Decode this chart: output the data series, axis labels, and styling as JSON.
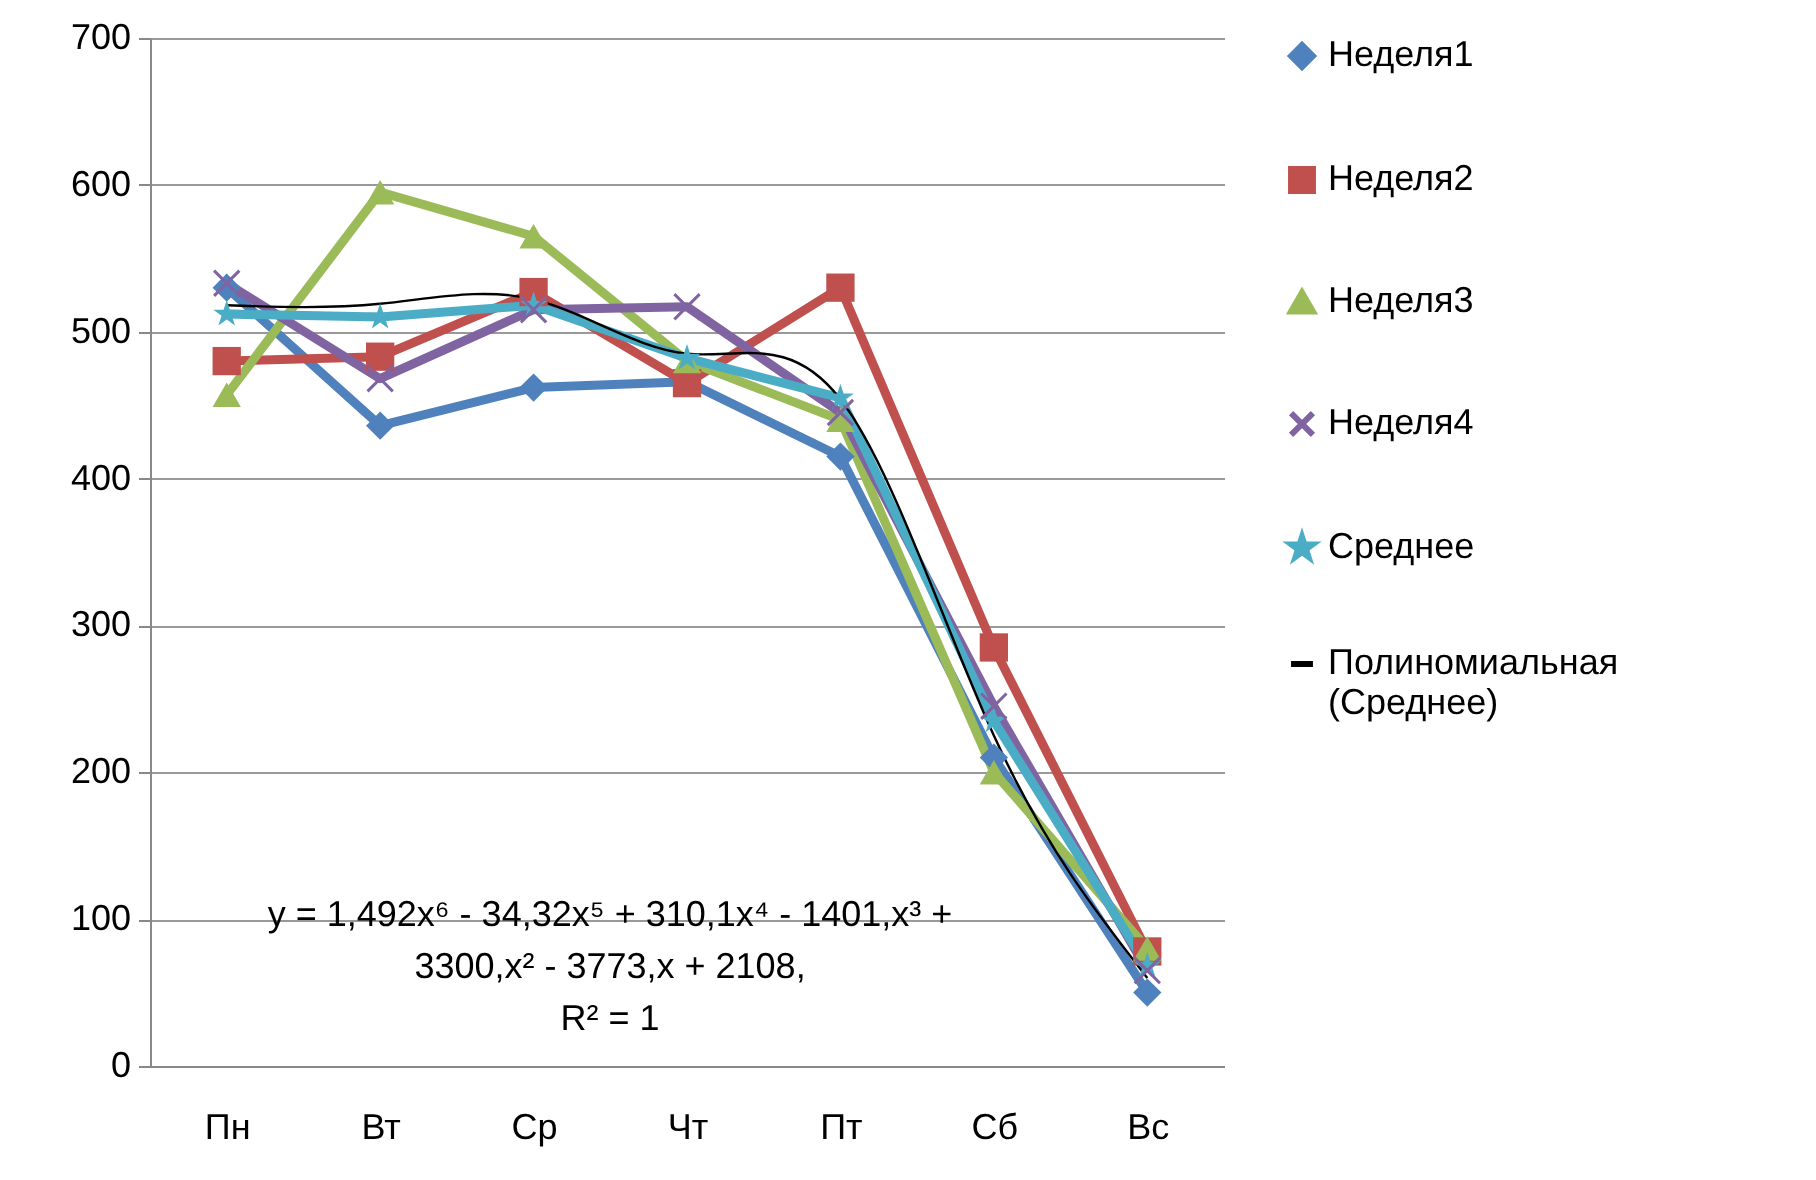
{
  "chart_data": {
    "type": "line",
    "categories": [
      "Пн",
      "Вт",
      "Ср",
      "Чт",
      "Пт",
      "Сб",
      "Вс"
    ],
    "ylim": [
      0,
      700
    ],
    "yticks": [
      0,
      100,
      200,
      300,
      400,
      500,
      600,
      700
    ],
    "grid": "y",
    "legend": "right",
    "series": [
      {
        "name": "Неделя1",
        "color": "#4f81bd",
        "marker": "diamond",
        "values": [
          530,
          436,
          462,
          466,
          415,
          210,
          50
        ]
      },
      {
        "name": "Неделя2",
        "color": "#c0504d",
        "marker": "square",
        "values": [
          480,
          483,
          527,
          465,
          530,
          285,
          78
        ]
      },
      {
        "name": "Неделя3",
        "color": "#9bbb59",
        "marker": "triangle",
        "values": [
          457,
          595,
          565,
          480,
          440,
          200,
          80
        ]
      },
      {
        "name": "Неделя4",
        "color": "#8064a2",
        "marker": "cross",
        "values": [
          533,
          468,
          515,
          517,
          445,
          245,
          65
        ]
      },
      {
        "name": "Среднее",
        "color": "#4bacc6",
        "marker": "star",
        "values": [
          512,
          510,
          518,
          482,
          455,
          235,
          68
        ]
      },
      {
        "name": "Полиномиальная (Среднее)",
        "color": "#000000",
        "marker": "none",
        "line_style": "solid",
        "values": [
          518,
          519,
          522,
          485,
          454,
          225,
          60
        ]
      }
    ],
    "annotations": [
      "y = 1,492x⁶ - 34,32x⁵ + 310,1x⁴ - 1401,x³ +",
      "3300,x² - 3773,x + 2108,",
      "R² = 1"
    ]
  }
}
